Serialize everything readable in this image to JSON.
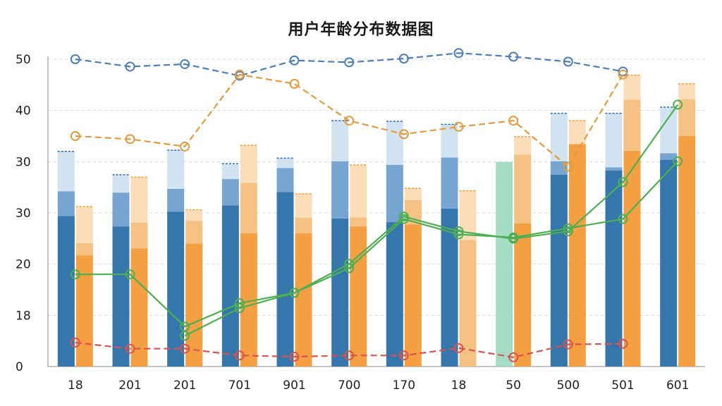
{
  "chart_data": {
    "type": "bar",
    "title": "用户年龄分布数据图",
    "xlabel": "",
    "ylabel": "",
    "categories": [
      "18",
      "201",
      "201",
      "701",
      "901",
      "700",
      "170",
      "18",
      "50",
      "500",
      "501",
      "601"
    ],
    "y_tick_labels": [
      "0",
      "18",
      "20",
      "30",
      "30",
      "40",
      "50"
    ],
    "ylim": [
      0,
      50
    ],
    "grid": true,
    "legend": "none",
    "stacked_groups": [
      {
        "name": "",
        "colors": [
          "#2a6fa8",
          "#6fa0cf",
          "#cfe0f0"
        ],
        "segments": [
          [
            24.5,
            4.0,
            6.5
          ],
          [
            22.8,
            5.5,
            2.9
          ],
          [
            25.2,
            3.7,
            6.3
          ],
          [
            26.2,
            4.3,
            2.5
          ],
          [
            28.4,
            3.9,
            1.6
          ],
          [
            24.1,
            9.3,
            6.6
          ],
          [
            23.5,
            9.3,
            7.1
          ],
          [
            25.7,
            8.3,
            5.4
          ],
          [
            0,
            0,
            0
          ],
          [
            31.2,
            2.2,
            7.8
          ],
          [
            31.9,
            0.5,
            8.8
          ],
          [
            33.6,
            1.1,
            7.5
          ]
        ]
      },
      {
        "name": "",
        "colors": [
          "#f29a38",
          "#f6bf7c",
          "#fbdcb5"
        ],
        "segments": [
          [
            18.1,
            2.0,
            5.9
          ],
          [
            19.2,
            4.2,
            7.4
          ],
          [
            20.0,
            3.7,
            1.8
          ],
          [
            21.7,
            8.2,
            6.1
          ],
          [
            21.7,
            2.5,
            3.9
          ],
          [
            22.8,
            1.5,
            8.5
          ],
          [
            23.1,
            4.0,
            1.9
          ],
          [
            0,
            20.6,
            8.0
          ],
          [
            23.3,
            11.2,
            2.9
          ],
          [
            36.2,
            0.0,
            3.8
          ],
          [
            35.1,
            8.3,
            4.0
          ],
          [
            37.5,
            6.0,
            2.5
          ]
        ]
      }
    ],
    "highlight_bar": {
      "category_index": 8,
      "value": 33.3,
      "color": "#9bd8c0"
    },
    "series": [
      {
        "name": "",
        "color": "#4a7fb8",
        "style": "dashed",
        "values": [
          50.0,
          48.8,
          49.2,
          47.3,
          49.8,
          49.5,
          50.1,
          51.0,
          50.4,
          49.6,
          48.0,
          null
        ]
      },
      {
        "name": "",
        "color": "#e59a3c",
        "style": "dashed",
        "values": [
          37.5,
          37.0,
          35.8,
          47.5,
          46.0,
          40.0,
          37.8,
          39.0,
          40.0,
          32.5,
          47.5,
          null
        ]
      },
      {
        "name": "",
        "color": "#4caf50",
        "style": "solid",
        "values": [
          15.0,
          15.0,
          6.5,
          10.3,
          12.0,
          16.7,
          24.4,
          22.0,
          20.8,
          22.0,
          30.0,
          42.6
        ]
      },
      {
        "name": "",
        "color": "#4caf50",
        "style": "solid",
        "values": [
          null,
          null,
          5.0,
          9.5,
          12.0,
          16.0,
          24.0,
          21.5,
          21.0,
          22.5,
          24.0,
          33.4
        ]
      },
      {
        "name": "",
        "color": "#d9534f",
        "style": "dashed",
        "values": [
          3.9,
          2.9,
          2.9,
          1.8,
          1.6,
          1.8,
          1.8,
          3.0,
          1.5,
          3.6,
          3.7,
          null
        ]
      }
    ]
  }
}
